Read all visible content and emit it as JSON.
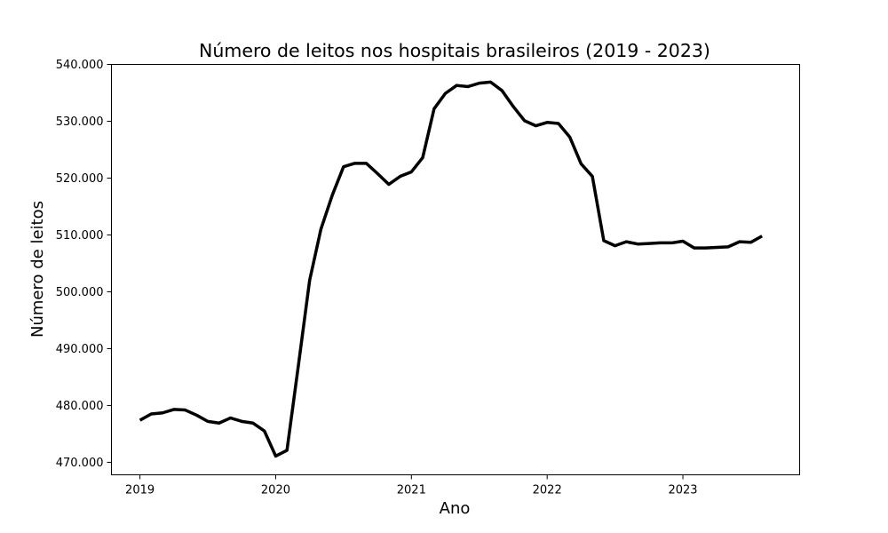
{
  "chart_data": {
    "type": "line",
    "title": "Número de leitos nos hospitais brasileiros (2019 - 2023)",
    "xlabel": "Ano",
    "ylabel": "Número de leitos",
    "xlim": [
      2018.79,
      2023.86
    ],
    "ylim": [
      467800,
      540000
    ],
    "x_ticks": [
      2019,
      2020,
      2021,
      2022,
      2023
    ],
    "x_tick_labels": [
      "2019",
      "2020",
      "2021",
      "2022",
      "2023"
    ],
    "y_ticks": [
      470000,
      480000,
      490000,
      500000,
      510000,
      520000,
      530000,
      540000
    ],
    "y_tick_labels": [
      "470.000",
      "480.000",
      "490.000",
      "500.000",
      "510.000",
      "520.000",
      "530.000",
      "540.000"
    ],
    "grid": false,
    "legend": "none",
    "series": [
      {
        "color": "#000000",
        "x": [
          2019.0,
          2019.083,
          2019.167,
          2019.25,
          2019.333,
          2019.417,
          2019.5,
          2019.583,
          2019.667,
          2019.75,
          2019.833,
          2019.917,
          2020.0,
          2020.083,
          2020.167,
          2020.25,
          2020.333,
          2020.417,
          2020.5,
          2020.583,
          2020.667,
          2020.75,
          2020.833,
          2020.917,
          2021.0,
          2021.083,
          2021.167,
          2021.25,
          2021.333,
          2021.417,
          2021.5,
          2021.583,
          2021.667,
          2021.75,
          2021.833,
          2021.917,
          2022.0,
          2022.083,
          2022.167,
          2022.25,
          2022.333,
          2022.417,
          2022.5,
          2022.583,
          2022.667,
          2022.75,
          2022.833,
          2022.917,
          2023.0,
          2023.083,
          2023.167,
          2023.25,
          2023.333,
          2023.417,
          2023.5,
          2023.583
        ],
        "y": [
          477400,
          478500,
          478700,
          479300,
          479200,
          478300,
          477200,
          476900,
          477800,
          477200,
          476900,
          475500,
          471100,
          472100,
          487000,
          502000,
          511000,
          517000,
          522000,
          522600,
          522600,
          520800,
          518900,
          520300,
          521100,
          523600,
          532200,
          534900,
          536300,
          536100,
          536700,
          536900,
          535400,
          532600,
          530100,
          529200,
          529800,
          529600,
          527200,
          522500,
          520300,
          509000,
          508100,
          508800,
          508400,
          508500,
          508600,
          508600,
          508900,
          507700,
          507700,
          507800,
          507900,
          508800,
          508700,
          509800
        ]
      }
    ]
  }
}
